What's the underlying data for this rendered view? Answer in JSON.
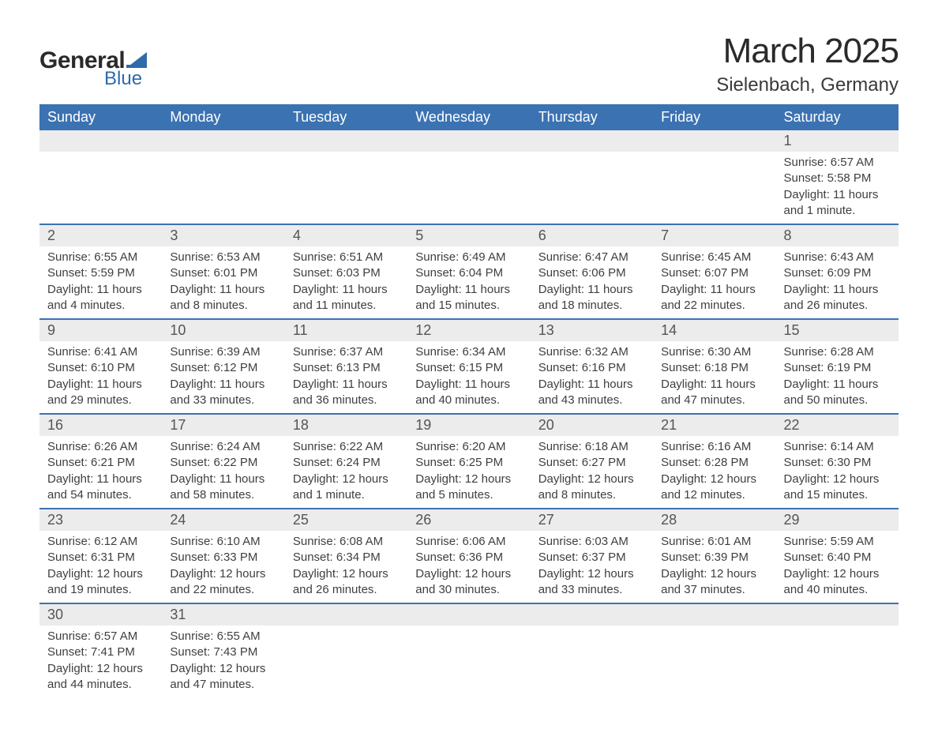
{
  "logo": {
    "text1": "General",
    "text2": "Blue",
    "flag_color": "#2f6aab"
  },
  "title": "March 2025",
  "location": "Sielenbach, Germany",
  "colors": {
    "header_bg": "#3b72b2",
    "header_text": "#ffffff",
    "daynum_bg": "#ececec",
    "row_border": "#3b72b2",
    "text": "#3a3a3a"
  },
  "fonts": {
    "title_pt": 44,
    "location_pt": 24,
    "header_pt": 18,
    "body_pt": 15
  },
  "weekdays": [
    "Sunday",
    "Monday",
    "Tuesday",
    "Wednesday",
    "Thursday",
    "Friday",
    "Saturday"
  ],
  "weeks": [
    [
      null,
      null,
      null,
      null,
      null,
      null,
      {
        "n": "1",
        "sr": "Sunrise: 6:57 AM",
        "ss": "Sunset: 5:58 PM",
        "d1": "Daylight: 11 hours",
        "d2": "and 1 minute."
      }
    ],
    [
      {
        "n": "2",
        "sr": "Sunrise: 6:55 AM",
        "ss": "Sunset: 5:59 PM",
        "d1": "Daylight: 11 hours",
        "d2": "and 4 minutes."
      },
      {
        "n": "3",
        "sr": "Sunrise: 6:53 AM",
        "ss": "Sunset: 6:01 PM",
        "d1": "Daylight: 11 hours",
        "d2": "and 8 minutes."
      },
      {
        "n": "4",
        "sr": "Sunrise: 6:51 AM",
        "ss": "Sunset: 6:03 PM",
        "d1": "Daylight: 11 hours",
        "d2": "and 11 minutes."
      },
      {
        "n": "5",
        "sr": "Sunrise: 6:49 AM",
        "ss": "Sunset: 6:04 PM",
        "d1": "Daylight: 11 hours",
        "d2": "and 15 minutes."
      },
      {
        "n": "6",
        "sr": "Sunrise: 6:47 AM",
        "ss": "Sunset: 6:06 PM",
        "d1": "Daylight: 11 hours",
        "d2": "and 18 minutes."
      },
      {
        "n": "7",
        "sr": "Sunrise: 6:45 AM",
        "ss": "Sunset: 6:07 PM",
        "d1": "Daylight: 11 hours",
        "d2": "and 22 minutes."
      },
      {
        "n": "8",
        "sr": "Sunrise: 6:43 AM",
        "ss": "Sunset: 6:09 PM",
        "d1": "Daylight: 11 hours",
        "d2": "and 26 minutes."
      }
    ],
    [
      {
        "n": "9",
        "sr": "Sunrise: 6:41 AM",
        "ss": "Sunset: 6:10 PM",
        "d1": "Daylight: 11 hours",
        "d2": "and 29 minutes."
      },
      {
        "n": "10",
        "sr": "Sunrise: 6:39 AM",
        "ss": "Sunset: 6:12 PM",
        "d1": "Daylight: 11 hours",
        "d2": "and 33 minutes."
      },
      {
        "n": "11",
        "sr": "Sunrise: 6:37 AM",
        "ss": "Sunset: 6:13 PM",
        "d1": "Daylight: 11 hours",
        "d2": "and 36 minutes."
      },
      {
        "n": "12",
        "sr": "Sunrise: 6:34 AM",
        "ss": "Sunset: 6:15 PM",
        "d1": "Daylight: 11 hours",
        "d2": "and 40 minutes."
      },
      {
        "n": "13",
        "sr": "Sunrise: 6:32 AM",
        "ss": "Sunset: 6:16 PM",
        "d1": "Daylight: 11 hours",
        "d2": "and 43 minutes."
      },
      {
        "n": "14",
        "sr": "Sunrise: 6:30 AM",
        "ss": "Sunset: 6:18 PM",
        "d1": "Daylight: 11 hours",
        "d2": "and 47 minutes."
      },
      {
        "n": "15",
        "sr": "Sunrise: 6:28 AM",
        "ss": "Sunset: 6:19 PM",
        "d1": "Daylight: 11 hours",
        "d2": "and 50 minutes."
      }
    ],
    [
      {
        "n": "16",
        "sr": "Sunrise: 6:26 AM",
        "ss": "Sunset: 6:21 PM",
        "d1": "Daylight: 11 hours",
        "d2": "and 54 minutes."
      },
      {
        "n": "17",
        "sr": "Sunrise: 6:24 AM",
        "ss": "Sunset: 6:22 PM",
        "d1": "Daylight: 11 hours",
        "d2": "and 58 minutes."
      },
      {
        "n": "18",
        "sr": "Sunrise: 6:22 AM",
        "ss": "Sunset: 6:24 PM",
        "d1": "Daylight: 12 hours",
        "d2": "and 1 minute."
      },
      {
        "n": "19",
        "sr": "Sunrise: 6:20 AM",
        "ss": "Sunset: 6:25 PM",
        "d1": "Daylight: 12 hours",
        "d2": "and 5 minutes."
      },
      {
        "n": "20",
        "sr": "Sunrise: 6:18 AM",
        "ss": "Sunset: 6:27 PM",
        "d1": "Daylight: 12 hours",
        "d2": "and 8 minutes."
      },
      {
        "n": "21",
        "sr": "Sunrise: 6:16 AM",
        "ss": "Sunset: 6:28 PM",
        "d1": "Daylight: 12 hours",
        "d2": "and 12 minutes."
      },
      {
        "n": "22",
        "sr": "Sunrise: 6:14 AM",
        "ss": "Sunset: 6:30 PM",
        "d1": "Daylight: 12 hours",
        "d2": "and 15 minutes."
      }
    ],
    [
      {
        "n": "23",
        "sr": "Sunrise: 6:12 AM",
        "ss": "Sunset: 6:31 PM",
        "d1": "Daylight: 12 hours",
        "d2": "and 19 minutes."
      },
      {
        "n": "24",
        "sr": "Sunrise: 6:10 AM",
        "ss": "Sunset: 6:33 PM",
        "d1": "Daylight: 12 hours",
        "d2": "and 22 minutes."
      },
      {
        "n": "25",
        "sr": "Sunrise: 6:08 AM",
        "ss": "Sunset: 6:34 PM",
        "d1": "Daylight: 12 hours",
        "d2": "and 26 minutes."
      },
      {
        "n": "26",
        "sr": "Sunrise: 6:06 AM",
        "ss": "Sunset: 6:36 PM",
        "d1": "Daylight: 12 hours",
        "d2": "and 30 minutes."
      },
      {
        "n": "27",
        "sr": "Sunrise: 6:03 AM",
        "ss": "Sunset: 6:37 PM",
        "d1": "Daylight: 12 hours",
        "d2": "and 33 minutes."
      },
      {
        "n": "28",
        "sr": "Sunrise: 6:01 AM",
        "ss": "Sunset: 6:39 PM",
        "d1": "Daylight: 12 hours",
        "d2": "and 37 minutes."
      },
      {
        "n": "29",
        "sr": "Sunrise: 5:59 AM",
        "ss": "Sunset: 6:40 PM",
        "d1": "Daylight: 12 hours",
        "d2": "and 40 minutes."
      }
    ],
    [
      {
        "n": "30",
        "sr": "Sunrise: 6:57 AM",
        "ss": "Sunset: 7:41 PM",
        "d1": "Daylight: 12 hours",
        "d2": "and 44 minutes."
      },
      {
        "n": "31",
        "sr": "Sunrise: 6:55 AM",
        "ss": "Sunset: 7:43 PM",
        "d1": "Daylight: 12 hours",
        "d2": "and 47 minutes."
      },
      null,
      null,
      null,
      null,
      null
    ]
  ]
}
